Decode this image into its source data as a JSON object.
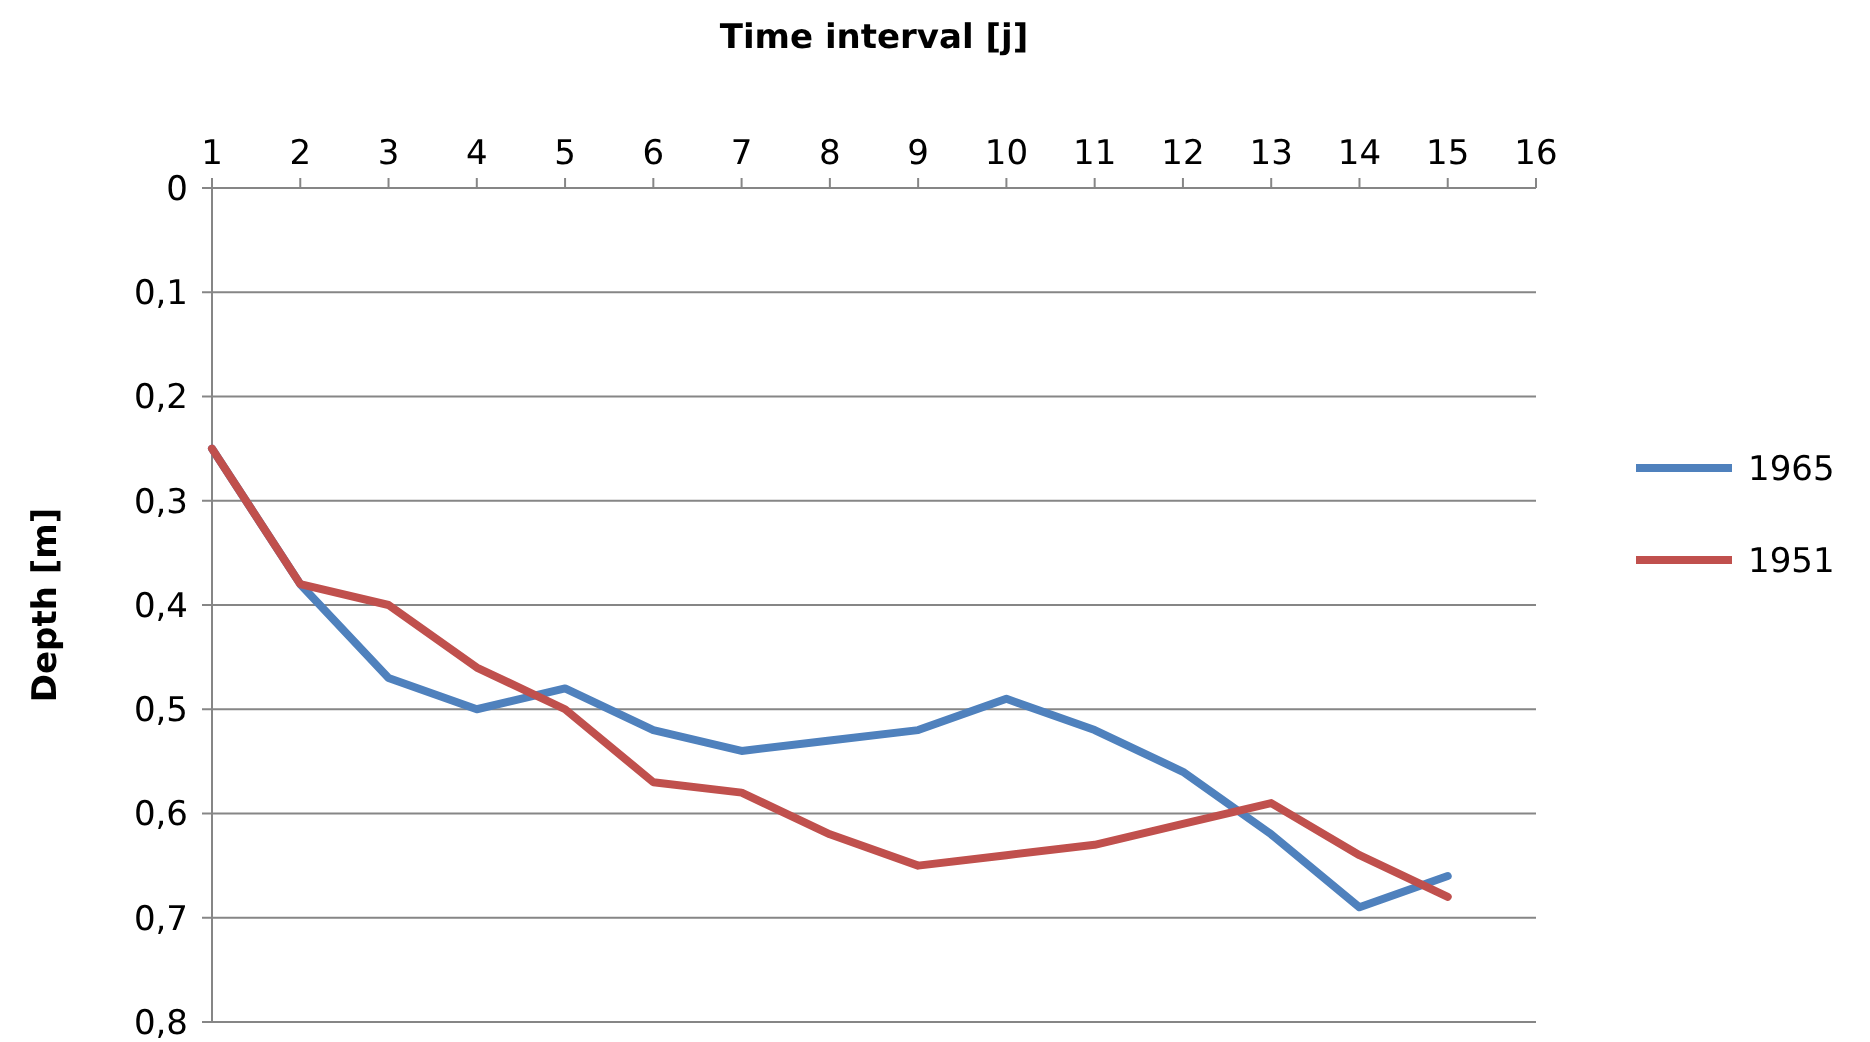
{
  "chart_data": {
    "type": "line",
    "xlabel": "Time interval [j]",
    "ylabel": "Depth [m]",
    "x": [
      1,
      2,
      3,
      4,
      5,
      6,
      7,
      8,
      9,
      10,
      11,
      12,
      13,
      14,
      15
    ],
    "series": [
      {
        "name": "1965",
        "color": "#4f81bd",
        "values": [
          0.25,
          0.38,
          0.47,
          0.5,
          0.48,
          0.52,
          0.54,
          0.53,
          0.52,
          0.49,
          0.52,
          0.56,
          0.62,
          0.69,
          0.66
        ]
      },
      {
        "name": "1951",
        "color": "#c0504d",
        "values": [
          0.25,
          0.38,
          0.4,
          0.46,
          0.5,
          0.57,
          0.58,
          0.62,
          0.65,
          0.64,
          0.63,
          0.61,
          0.59,
          0.64,
          0.68
        ]
      }
    ],
    "xlim": [
      1,
      16
    ],
    "xticks": [
      1,
      2,
      3,
      4,
      5,
      6,
      7,
      8,
      9,
      10,
      11,
      12,
      13,
      14,
      15,
      16
    ],
    "ylim": [
      0.8,
      0
    ],
    "yticks": [
      0,
      {
        "value": 0.1,
        "label": "0,1"
      },
      {
        "value": 0.2,
        "label": "0,2"
      },
      {
        "value": 0.3,
        "label": "0,3"
      },
      {
        "value": 0.4,
        "label": "0,4"
      },
      {
        "value": 0.5,
        "label": "0,5"
      },
      {
        "value": 0.6,
        "label": "0,6"
      },
      {
        "value": 0.7,
        "label": "0,7"
      },
      {
        "value": 0.8,
        "label": "0,8"
      }
    ],
    "grid": "y",
    "legend": "right",
    "marker": "none",
    "line_style": "solid"
  }
}
